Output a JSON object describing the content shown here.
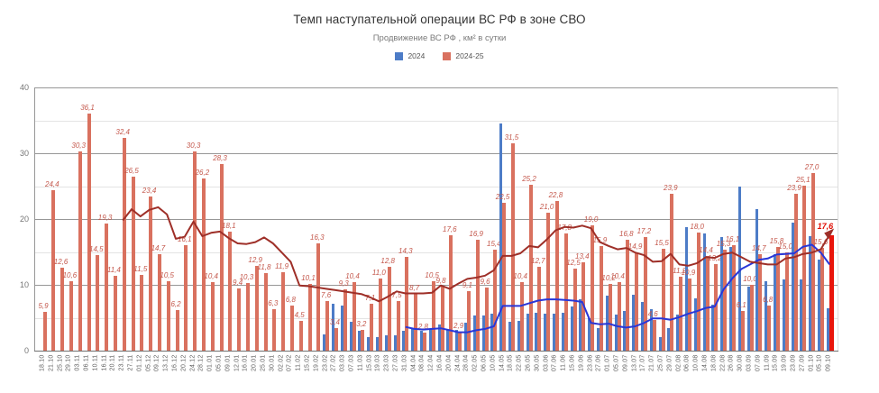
{
  "header": {
    "title": "Темп наступательной операции ВС РФ в зоне СВО",
    "subtitle": "Продвижение ВС РФ , км² в сутки"
  },
  "chart_data": {
    "type": "bar",
    "title": "Темп наступательной операции ВС РФ в зоне СВО",
    "subtitle": "Продвижение ВС РФ , км² в сутки",
    "ylim": [
      0,
      40
    ],
    "yticks": [
      0,
      10,
      20,
      30,
      40
    ],
    "yticks_minor": [
      5,
      15,
      25,
      35
    ],
    "grid": "horizontal",
    "legend_position": "top",
    "categories": [
      "18.10",
      "21.10",
      "25.10",
      "29.10",
      "03.11",
      "06.11",
      "10.11",
      "16.11",
      "20.11",
      "23.11",
      "27.11",
      "01.12",
      "05.12",
      "09.12",
      "13.12",
      "16.12",
      "20.12",
      "24.12",
      "28.12",
      "01.01",
      "05.01",
      "09.01",
      "12.01",
      "16.01",
      "20.01",
      "25.01",
      "30.01",
      "02.02",
      "07.02",
      "11.02",
      "15.02",
      "19.02",
      "23.02",
      "27.02",
      "03.03",
      "07.03",
      "11.03",
      "15.03",
      "19.03",
      "23.03",
      "27.03",
      "31.03",
      "04.04",
      "08.04",
      "12.04",
      "16.04",
      "20.04",
      "24.04",
      "28.04",
      "02.05",
      "06.05",
      "10.05",
      "14.05",
      "18.05",
      "22.05",
      "26.05",
      "30.05",
      "03.06",
      "07.06",
      "11.06",
      "15.06",
      "19.06",
      "23.06",
      "27.06",
      "01.07",
      "05.07",
      "09.07",
      "13.07",
      "17.07",
      "21.07",
      "25.07",
      "29.07",
      "02.08",
      "06.08",
      "10.08",
      "14.08",
      "18.08",
      "22.08",
      "26.08",
      "30.08",
      "03.09",
      "07.09",
      "11.09",
      "15.09",
      "19.09",
      "23.09",
      "27.09",
      "01.10",
      "05.10",
      "09.10"
    ],
    "series": [
      {
        "name": "2024",
        "type": "bar",
        "color": "#4d7cc7",
        "start_index": 32,
        "values": [
          2.5,
          7.1,
          6.9,
          4.4,
          3.0,
          2.0,
          2.1,
          2.4,
          2.3,
          3.0,
          3.3,
          3.0,
          3.3,
          4.0,
          3.1,
          3.1,
          4.3,
          5.3,
          5.3,
          5.6,
          34.5,
          4.4,
          4.5,
          5.6,
          5.8,
          5.6,
          5.6,
          5.8,
          6.7,
          7.8,
          4.9,
          3.5,
          8.3,
          5.5,
          6.0,
          8.5,
          7.4,
          6.3,
          2.1,
          3.5,
          5.5,
          18.8,
          8.0,
          17.8,
          7.0,
          17.2,
          15.7,
          25.0,
          9.7,
          21.5,
          10.5,
          14.7,
          10.8,
          19.5,
          10.8,
          17.4,
          13.8,
          6.5
        ]
      },
      {
        "name": "2024-25",
        "type": "bar",
        "color": "#d9715f",
        "last_bar_color": "#e9150b",
        "start_index": 0,
        "labels": [
          "5,9",
          "24,4",
          "12,6",
          "10,6",
          "30,3",
          "36,1",
          "14,5",
          "19,3",
          "11,4",
          "32,4",
          "26,5",
          "11,5",
          "23,4",
          "14,7",
          "10,5",
          "6,2",
          "16,1",
          "30,3",
          "26,2",
          "10,4",
          "28,3",
          "18,1",
          "9,4",
          "10,3",
          "12,9",
          "11,8",
          "6,3",
          "11,9",
          "6,8",
          "4,5",
          "10,1",
          "16,3",
          "7,6",
          "3,4",
          "9,3",
          "10,4",
          "3,2",
          "7,1",
          "11,0",
          "12,8",
          "7,5",
          "14,3",
          "8,7",
          "2,8",
          "10,5",
          "9,8",
          "17,6",
          "2,9",
          "9,1",
          "16,9",
          "9,6",
          "15,4",
          "22,5",
          "31,5",
          "10,4",
          "25,2",
          "12,7",
          "21,0",
          "22,8",
          "17,8",
          "12,5",
          "13,4",
          "19,0",
          "15,9",
          "10,2",
          "10,4",
          "16,8",
          "14,9",
          "17,2",
          "4,6",
          "15,5",
          "23,9",
          "11,2",
          "10,9",
          "18,0",
          "14,4",
          "13,2",
          "15,3",
          "16,1",
          "6,1",
          "10,0",
          "14,7",
          "6,8",
          "15,8",
          "15,0",
          "23,9",
          "25,1",
          "27,0",
          "15,6",
          "17,6"
        ]
      },
      {
        "name": "trend-2024-25",
        "type": "line",
        "color": "#9e2f28",
        "arrow_end": true,
        "start_index": 9,
        "values": [
          19.8,
          21.5,
          20.4,
          21.4,
          21.8,
          20.7,
          17.0,
          17.3,
          19.6,
          17.4,
          17.9,
          18.1,
          17.1,
          16.3,
          16.2,
          16.5,
          17.2,
          16.3,
          14.9,
          13.5,
          9.9,
          9.8,
          9.6,
          9.4,
          9.2,
          9.0,
          8.8,
          8.6,
          8.1,
          7.5,
          8.2,
          9.0,
          8.7,
          8.7,
          8.7,
          8.8,
          9.9,
          9.4,
          10.2,
          10.9,
          11.1,
          11.4,
          12.2,
          14.4,
          14.4,
          14.8,
          15.9,
          15.7,
          16.9,
          18.3,
          18.8,
          18.7,
          19.0,
          18.6,
          16.5,
          15.9,
          15.4,
          15.6,
          14.9,
          14.5,
          13.5,
          13.6,
          14.7,
          13.1,
          12.9,
          13.3,
          14.2,
          14.1,
          14.7,
          14.9,
          14.2,
          13.5,
          13.3,
          13.1,
          13.1,
          14.0,
          14.2,
          14.7,
          14.9,
          15.4,
          17.6
        ]
      },
      {
        "name": "trend-2024",
        "type": "line",
        "color": "#2936d8",
        "arrow_end": false,
        "start_index": 41,
        "values": [
          3.6,
          3.3,
          3.2,
          3.3,
          3.4,
          3.1,
          2.8,
          2.8,
          3.1,
          3.3,
          3.7,
          6.8,
          6.8,
          6.8,
          7.2,
          7.6,
          7.8,
          7.8,
          7.7,
          7.6,
          7.4,
          4.2,
          4.0,
          4.1,
          3.7,
          3.5,
          3.7,
          4.2,
          4.9,
          4.9,
          4.7,
          5.1,
          5.6,
          6.0,
          6.5,
          6.7,
          9.3,
          11.0,
          12.4,
          13.1,
          13.8,
          14.0,
          14.6,
          14.7,
          14.8,
          15.8,
          16.1,
          14.9,
          13.1
        ]
      }
    ],
    "highlight_last_label": "17,6"
  }
}
